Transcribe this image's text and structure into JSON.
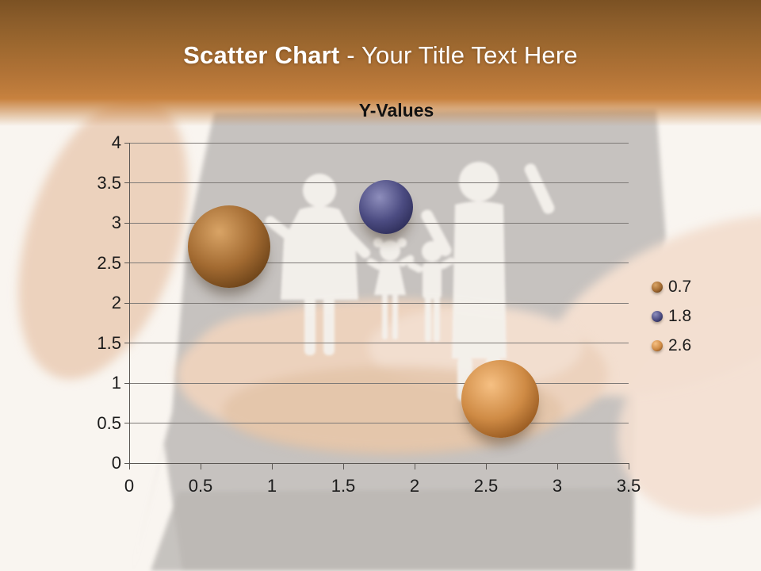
{
  "header": {
    "title_bold": "Scatter Chart",
    "title_rest": " - Your Title Text Here"
  },
  "chart_data": {
    "type": "scatter",
    "title": "Y-Values",
    "xlabel": "",
    "ylabel": "",
    "xlim": [
      0,
      3.5
    ],
    "ylim": [
      0,
      4
    ],
    "grid": "horizontal gridlines every 0.5",
    "legend_position": "right",
    "x_ticks": [
      "0",
      "0.5",
      "1",
      "1.5",
      "2",
      "2.5",
      "3",
      "3.5"
    ],
    "y_ticks": [
      "4",
      "3.5",
      "3",
      "2.5",
      "2",
      "1.5",
      "1",
      "0.5",
      "0"
    ],
    "series": [
      {
        "name": "0.7",
        "points": [
          {
            "x": 0.7,
            "y": 2.7
          }
        ],
        "marker_radius_px": 52,
        "color": "#8a5a28",
        "gradient": {
          "hi": "#d9a466",
          "mid": "#a26a31",
          "dark": "#6f451a",
          "rim": "#4f2f0f"
        }
      },
      {
        "name": "1.8",
        "points": [
          {
            "x": 1.8,
            "y": 3.2
          }
        ],
        "marker_radius_px": 34,
        "color": "#3c3c6e",
        "gradient": {
          "hi": "#8e8ebc",
          "mid": "#4c4c82",
          "dark": "#30305c",
          "rim": "#1d1d3e"
        }
      },
      {
        "name": "2.6",
        "points": [
          {
            "x": 2.6,
            "y": 0.8
          }
        ],
        "marker_radius_px": 49,
        "color": "#c5803c",
        "gradient": {
          "hi": "#f6c083",
          "mid": "#cf8b45",
          "dark": "#9a5c22",
          "rim": "#774114"
        }
      }
    ]
  },
  "colors": {
    "header_top": "#7b5123",
    "header_mid": "#b07236",
    "header_bottom": "#c8823f",
    "title_text": "#ffffff",
    "chart_title": "#121212",
    "label": "#1b1b1b",
    "gridline": "#7e7a77",
    "axis": "#5a5652",
    "background_cream": "#f9f5f0",
    "shirt_gray": "#c6c2bf",
    "shirt_gray_dark": "#bab6b3",
    "skin": "#ecd2bd",
    "skin_light": "#f3dfd0",
    "silhouette": "#f4f1ec"
  }
}
